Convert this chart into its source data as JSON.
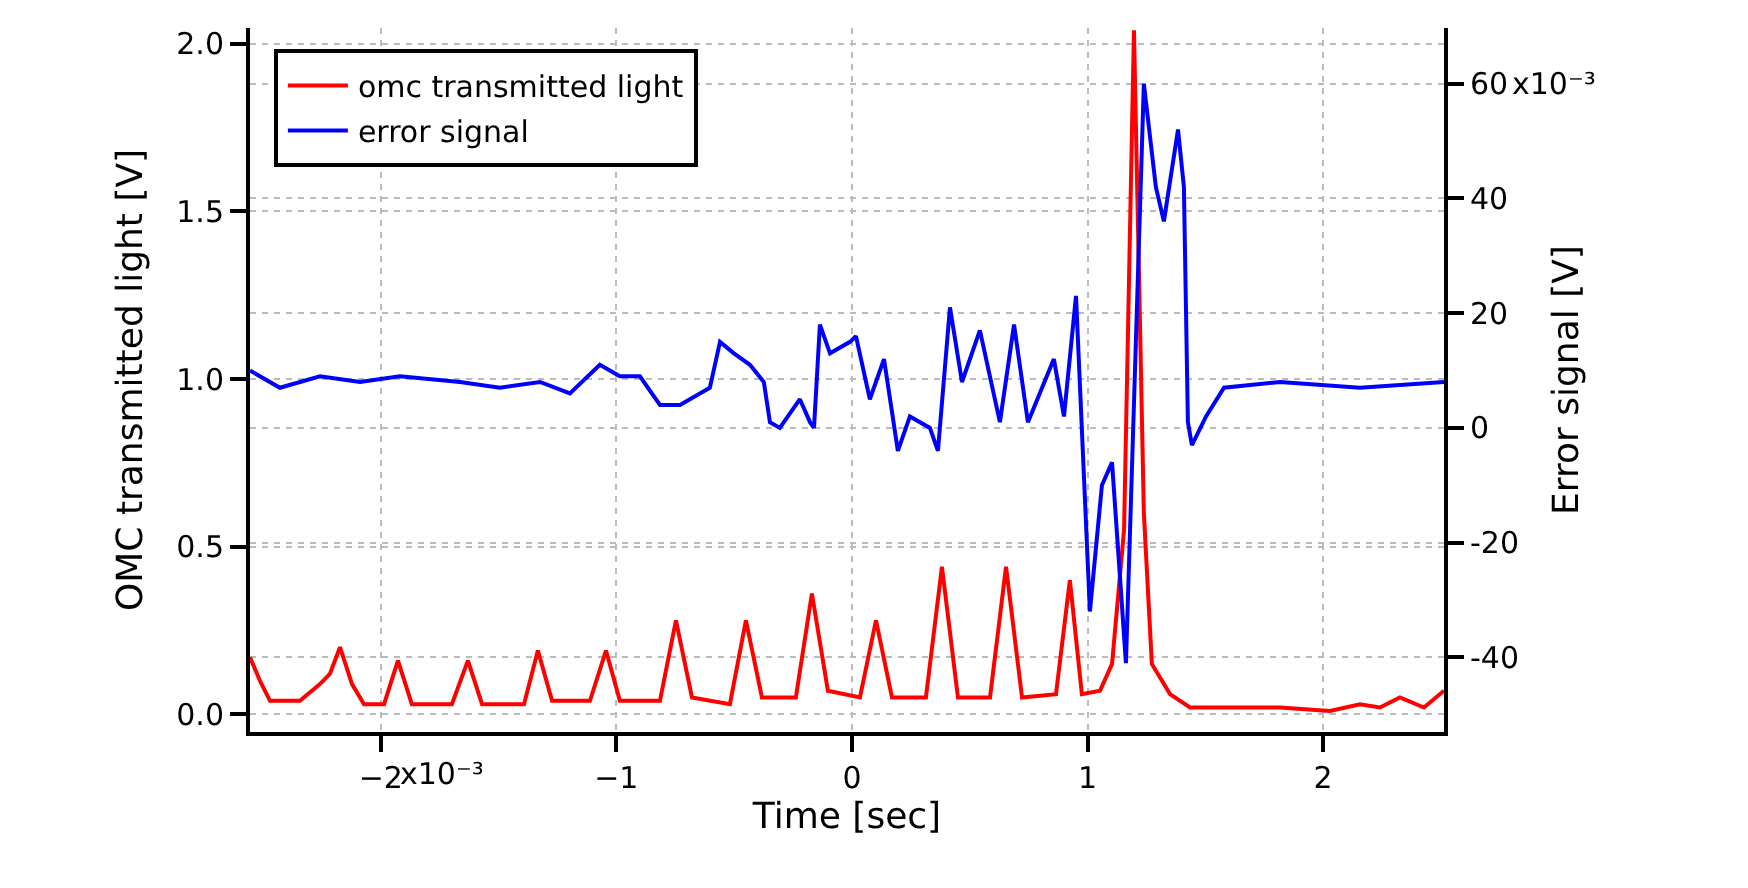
{
  "chart_data": {
    "type": "line",
    "xlabel": "Time [sec]",
    "ylabel": "OMC transmitted light [V]",
    "y2label": "Error signal [V]",
    "xlim": [
      -2.555,
      2.513
    ],
    "ylim": [
      -0.053,
      2.047
    ],
    "y2lim": [
      -53,
      69.7
    ],
    "xticks": [
      {
        "value": -2,
        "label": "−2"
      },
      {
        "value": -1,
        "label": "−1"
      },
      0,
      1,
      2
    ],
    "annotations": [
      "x10⁻³",
      "x10⁻³"
    ],
    "yticks": [
      {
        "value": 0,
        "label": "0.0"
      },
      0.5,
      {
        "value": 1,
        "label": "1.0"
      },
      1.5,
      {
        "value": 2,
        "label": "2.0"
      }
    ],
    "y2ticks": [
      -40,
      -20,
      0,
      20,
      40,
      60
    ],
    "grid": true,
    "legend": "top left",
    "marker": "none",
    "line_style": "solid",
    "series": [
      {
        "name": "omc transmitted light",
        "color": "#ff0000",
        "x": [
          -2.555,
          -2.513,
          -2.47,
          -2.343,
          -2.258,
          -2.216,
          -2.173,
          -2.122,
          -2.071,
          -1.986,
          -1.927,
          -1.868,
          -1.698,
          -1.63,
          -1.57,
          -1.392,
          -1.333,
          -1.273,
          -1.112,
          -1.044,
          -0.985,
          -0.815,
          -0.747,
          -0.679,
          -0.518,
          -0.45,
          -0.382,
          -0.238,
          -0.17,
          -0.102,
          0.034,
          0.102,
          0.17,
          0.314,
          0.382,
          0.45,
          0.586,
          0.654,
          0.722,
          0.866,
          0.925,
          0.976,
          1.053,
          1.104,
          1.155,
          1.197,
          1.239,
          1.273,
          1.35,
          1.435,
          1.817,
          2.029,
          2.156,
          2.241,
          2.326,
          2.428,
          2.513
        ],
        "values": [
          0.17,
          0.1,
          0.04,
          0.04,
          0.09,
          0.12,
          0.2,
          0.09,
          0.03,
          0.03,
          0.16,
          0.03,
          0.03,
          0.16,
          0.03,
          0.03,
          0.19,
          0.04,
          0.04,
          0.19,
          0.04,
          0.04,
          0.28,
          0.05,
          0.03,
          0.28,
          0.05,
          0.05,
          0.36,
          0.07,
          0.05,
          0.28,
          0.05,
          0.05,
          0.44,
          0.05,
          0.05,
          0.44,
          0.05,
          0.06,
          0.4,
          0.06,
          0.07,
          0.15,
          0.55,
          2.04,
          0.6,
          0.15,
          0.06,
          0.02,
          0.02,
          0.01,
          0.03,
          0.02,
          0.05,
          0.02,
          0.07
        ]
      },
      {
        "name": "error signal",
        "color": "#0000ff",
        "axis": "y2",
        "x": [
          -2.555,
          -2.428,
          -2.258,
          -2.088,
          -1.919,
          -1.664,
          -1.494,
          -1.324,
          -1.197,
          -1.07,
          -0.985,
          -0.9,
          -0.815,
          -0.73,
          -0.603,
          -0.56,
          -0.501,
          -0.433,
          -0.374,
          -0.348,
          -0.306,
          -0.221,
          -0.178,
          -0.161,
          -0.136,
          -0.093,
          -0.008,
          0.017,
          0.076,
          0.136,
          0.195,
          0.246,
          0.331,
          0.365,
          0.416,
          0.467,
          0.543,
          0.628,
          0.688,
          0.747,
          0.857,
          0.9,
          0.951,
          1.01,
          1.061,
          1.104,
          1.163,
          1.239,
          1.29,
          1.324,
          1.384,
          1.409,
          1.426,
          1.443,
          1.503,
          1.579,
          1.817,
          2.156,
          2.513
        ],
        "values": [
          10,
          7,
          9,
          8,
          9,
          8,
          7,
          8,
          6,
          11,
          9,
          9,
          4,
          4,
          7,
          15,
          13,
          11,
          8,
          1,
          0,
          5,
          1,
          0,
          18,
          13,
          15,
          16,
          5,
          12,
          -4,
          2,
          0,
          -4,
          21,
          8,
          17,
          1,
          18,
          1,
          12,
          2,
          23,
          -32,
          -10,
          -6,
          -41,
          60,
          42,
          36,
          52,
          42,
          1,
          -3,
          2,
          7,
          8,
          7,
          8
        ]
      }
    ]
  }
}
